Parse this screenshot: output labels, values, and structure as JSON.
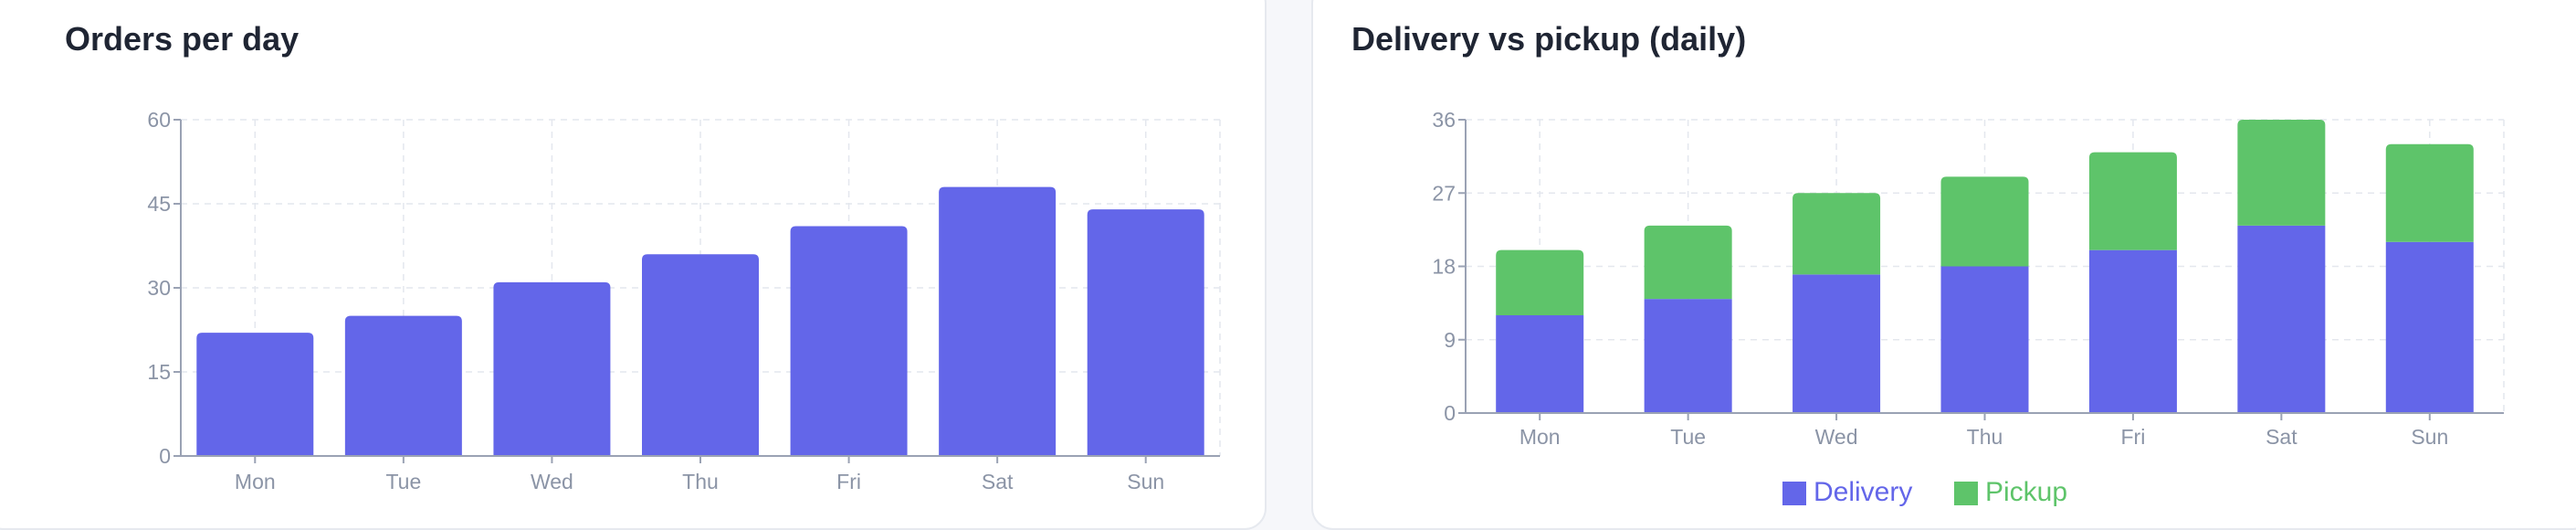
{
  "colors": {
    "delivery": "#6366e9",
    "pickup": "#5ec46a",
    "grid": "#e4e7ee",
    "axis": "#9aa2b4",
    "tick": "#8b94a6"
  },
  "left_card": {
    "title": "Orders per day"
  },
  "right_card": {
    "title": "Delivery vs pickup (daily)"
  },
  "chart_data": [
    {
      "type": "bar",
      "title": "Orders per day",
      "categories": [
        "Mon",
        "Tue",
        "Wed",
        "Thu",
        "Fri",
        "Sat",
        "Sun"
      ],
      "values": [
        22,
        25,
        31,
        36,
        41,
        48,
        44
      ],
      "ylim": [
        0,
        60
      ],
      "yticks": [
        "0",
        "15",
        "30",
        "45",
        "60"
      ],
      "grid": true,
      "legend": "none"
    },
    {
      "type": "bar",
      "stacked": true,
      "title": "Delivery vs pickup (daily)",
      "categories": [
        "Mon",
        "Tue",
        "Wed",
        "Thu",
        "Fri",
        "Sat",
        "Sun"
      ],
      "series": [
        {
          "name": "Delivery",
          "values": [
            12,
            14,
            17,
            18,
            20,
            23,
            21
          ]
        },
        {
          "name": "Pickup",
          "values": [
            8,
            9,
            10,
            11,
            12,
            13,
            12
          ]
        }
      ],
      "ylim": [
        0,
        36
      ],
      "yticks": [
        "0",
        "9",
        "18",
        "27",
        "36"
      ],
      "grid": true,
      "legend": "bottom"
    }
  ]
}
